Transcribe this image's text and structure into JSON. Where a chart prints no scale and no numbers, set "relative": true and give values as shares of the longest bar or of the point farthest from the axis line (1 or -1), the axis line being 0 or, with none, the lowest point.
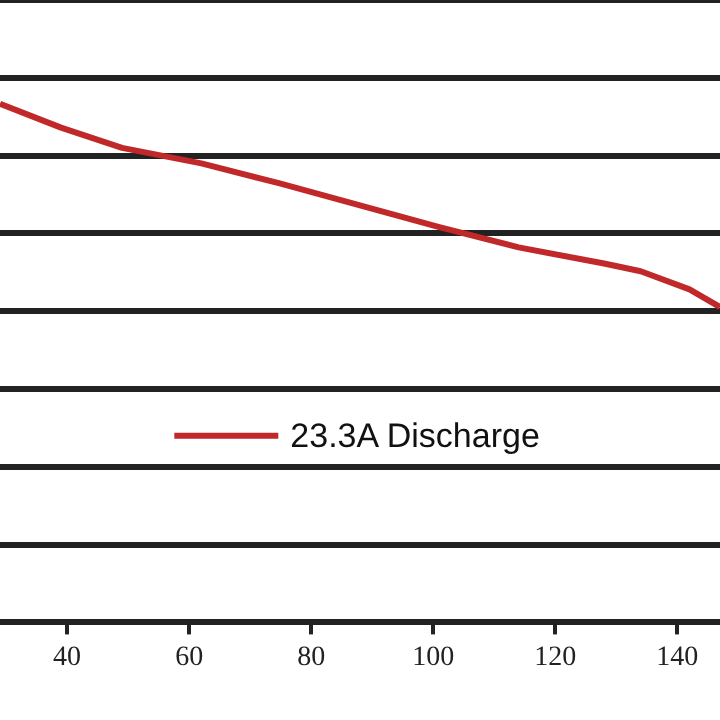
{
  "chart_data": {
    "type": "line",
    "relative": true,
    "x": [
      29,
      39,
      49,
      62,
      75,
      88,
      101,
      114,
      128,
      134,
      142,
      147
    ],
    "series": [
      {
        "name": "23.3A Discharge",
        "color": "#c0282a",
        "values": [
          1,
          0.954,
          0.915,
          0.885,
          0.846,
          0.804,
          0.762,
          0.723,
          0.692,
          0.677,
          0.642,
          0.608
        ]
      }
    ],
    "xlim": [
      29,
      147
    ],
    "xticks": [
      40,
      60,
      80,
      100,
      120,
      140
    ],
    "grid": "y",
    "legend": "bottom",
    "marker": "none",
    "line_style": "solid"
  }
}
